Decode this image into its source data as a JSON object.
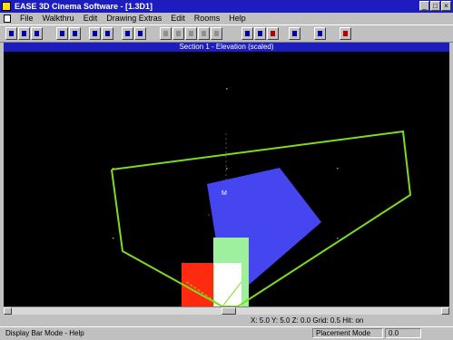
{
  "window": {
    "title": "EASE 3D Cinema Software - [1.3D1]",
    "controls": [
      "_",
      "□",
      "×"
    ]
  },
  "menu": {
    "items": [
      "File",
      "Walkthru",
      "Edit",
      "Drawing Extras",
      "Edit",
      "Rooms",
      "Help"
    ]
  },
  "viewport": {
    "caption": "Section 1 - Elevation (scaled)",
    "label": "M"
  },
  "status": {
    "coords": "X: 5.0   Y: 5.0   Z: 0.0   Grid: 0.5   Hit: on",
    "hint": "Display Bar Mode - Help",
    "panel1": "Placement Mode",
    "panel2": "0.0"
  },
  "colors": {
    "title_bar": "#1d1dbf",
    "canvas_bg": "#000000",
    "audience_outline": "#7ddc1f",
    "speaker_blue": "#4646f0",
    "speaker_red": "#ff2a10",
    "speaker_white": "#ffffff",
    "speaker_green": "#9ef09e"
  },
  "toolbar": {
    "icons": [
      "open-icon",
      "save-icon",
      "print-icon",
      "cut-icon",
      "copy-icon",
      "paste-icon",
      "undo-icon",
      "redo-icon",
      "zoom-in-icon",
      "zoom-out-icon",
      "pan-icon",
      "rotate-icon",
      "grid-icon",
      "snap-icon",
      "select-icon",
      "move-icon",
      "scale-icon",
      "mirror-icon",
      "help-icon",
      "info-icon"
    ]
  }
}
